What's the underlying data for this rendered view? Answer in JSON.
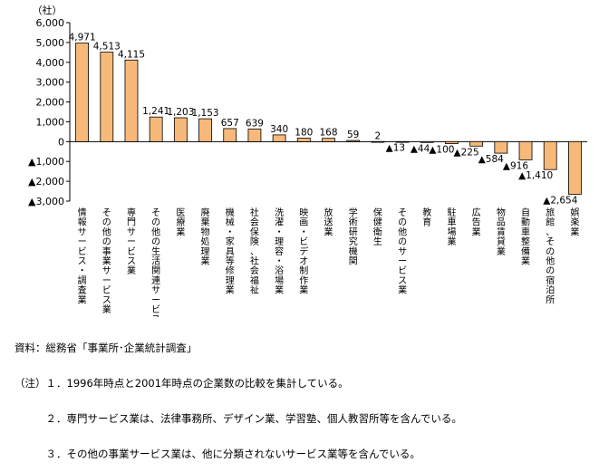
{
  "chart_data": {
    "type": "bar",
    "unit_label": "（社）",
    "ylim": [
      -3000,
      6000
    ],
    "yticks": [
      {
        "value": 6000,
        "label": "6,000"
      },
      {
        "value": 5000,
        "label": "5,000"
      },
      {
        "value": 4000,
        "label": "4,000"
      },
      {
        "value": 3000,
        "label": "3,000"
      },
      {
        "value": 2000,
        "label": "2,000"
      },
      {
        "value": 1000,
        "label": "1,000"
      },
      {
        "value": 0,
        "label": "0"
      },
      {
        "value": -1000,
        "label": "▲1,000"
      },
      {
        "value": -2000,
        "label": "▲2,000"
      },
      {
        "value": -3000,
        "label": "▲3,000"
      }
    ],
    "categories": [
      "情報サービス・調査業",
      "その他の事業サービス業",
      "専門サービス業",
      "その他の生活関連サービス業",
      "医療業",
      "廃棄物処理業",
      "機械・家具等修理業",
      "社会保険、社会福祉",
      "洗濯・理容・浴場業",
      "映画・ビデオ制作業",
      "放送業",
      "学術研究機関",
      "保健衛生",
      "その他のサービス業",
      "教育",
      "駐車場業",
      "広告業",
      "物品賃貸業",
      "自動車整備業",
      "旅館、その他の宿泊所",
      "娯楽業"
    ],
    "values": [
      4971,
      4513,
      4115,
      1241,
      1203,
      1153,
      657,
      639,
      340,
      180,
      168,
      59,
      2,
      -13,
      -44,
      -100,
      -225,
      -584,
      -916,
      -1410,
      -2654
    ],
    "data_labels": [
      "4,971",
      "4,513",
      "4,115",
      "1,241",
      "1,203",
      "1,153",
      "657",
      "639",
      "340",
      "180",
      "168",
      "59",
      "2",
      "▲13",
      "▲44",
      "▲100",
      "▲225",
      "▲584",
      "▲916",
      "▲1,410",
      "▲2,654"
    ],
    "bar_color": "#f6b97a",
    "bar_stroke": "#000000",
    "grid": false
  },
  "notes": [
    "資料：総務省「事業所･企業統計調査」",
    "（注）１．1996年時点と2001年時点の企業数の比較を集計している。",
    "　　　２．専門サービス業は、法律事務所、デザイン業、学習塾、個人教習所等を含んでいる。",
    "　　　３．その他の事業サービス業は、他に分類されないサービス業等を含んでいる。"
  ]
}
